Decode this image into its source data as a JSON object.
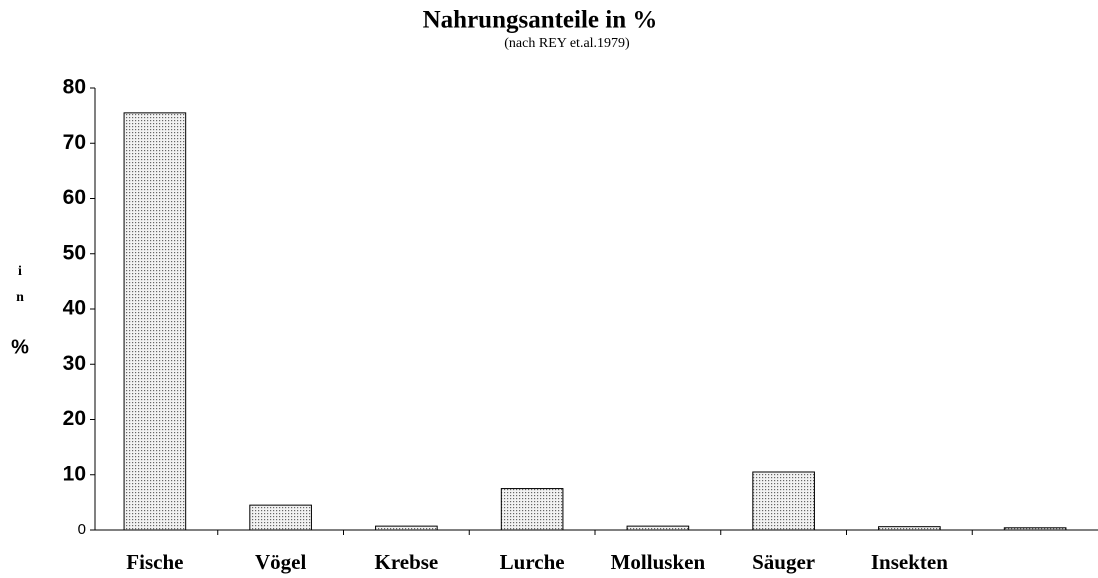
{
  "chart_data": {
    "type": "bar",
    "title": "Nahrungsanteile in %",
    "subtitle": "(nach REY et.al.1979)",
    "y_label": [
      "i",
      "n",
      "%"
    ],
    "categories": [
      "Fische",
      "Vögel",
      "Krebse",
      "Lurche",
      "Mollusken",
      "Säuger",
      "Insekten",
      null
    ],
    "values": [
      75.5,
      4.5,
      0.7,
      7.5,
      0.7,
      10.5,
      0.6,
      0.4
    ],
    "color": "#bbbbbb",
    "ylim": [
      0,
      80
    ],
    "yticks": [
      0,
      10,
      20,
      30,
      40,
      50,
      60,
      70,
      80
    ],
    "grid": false
  }
}
